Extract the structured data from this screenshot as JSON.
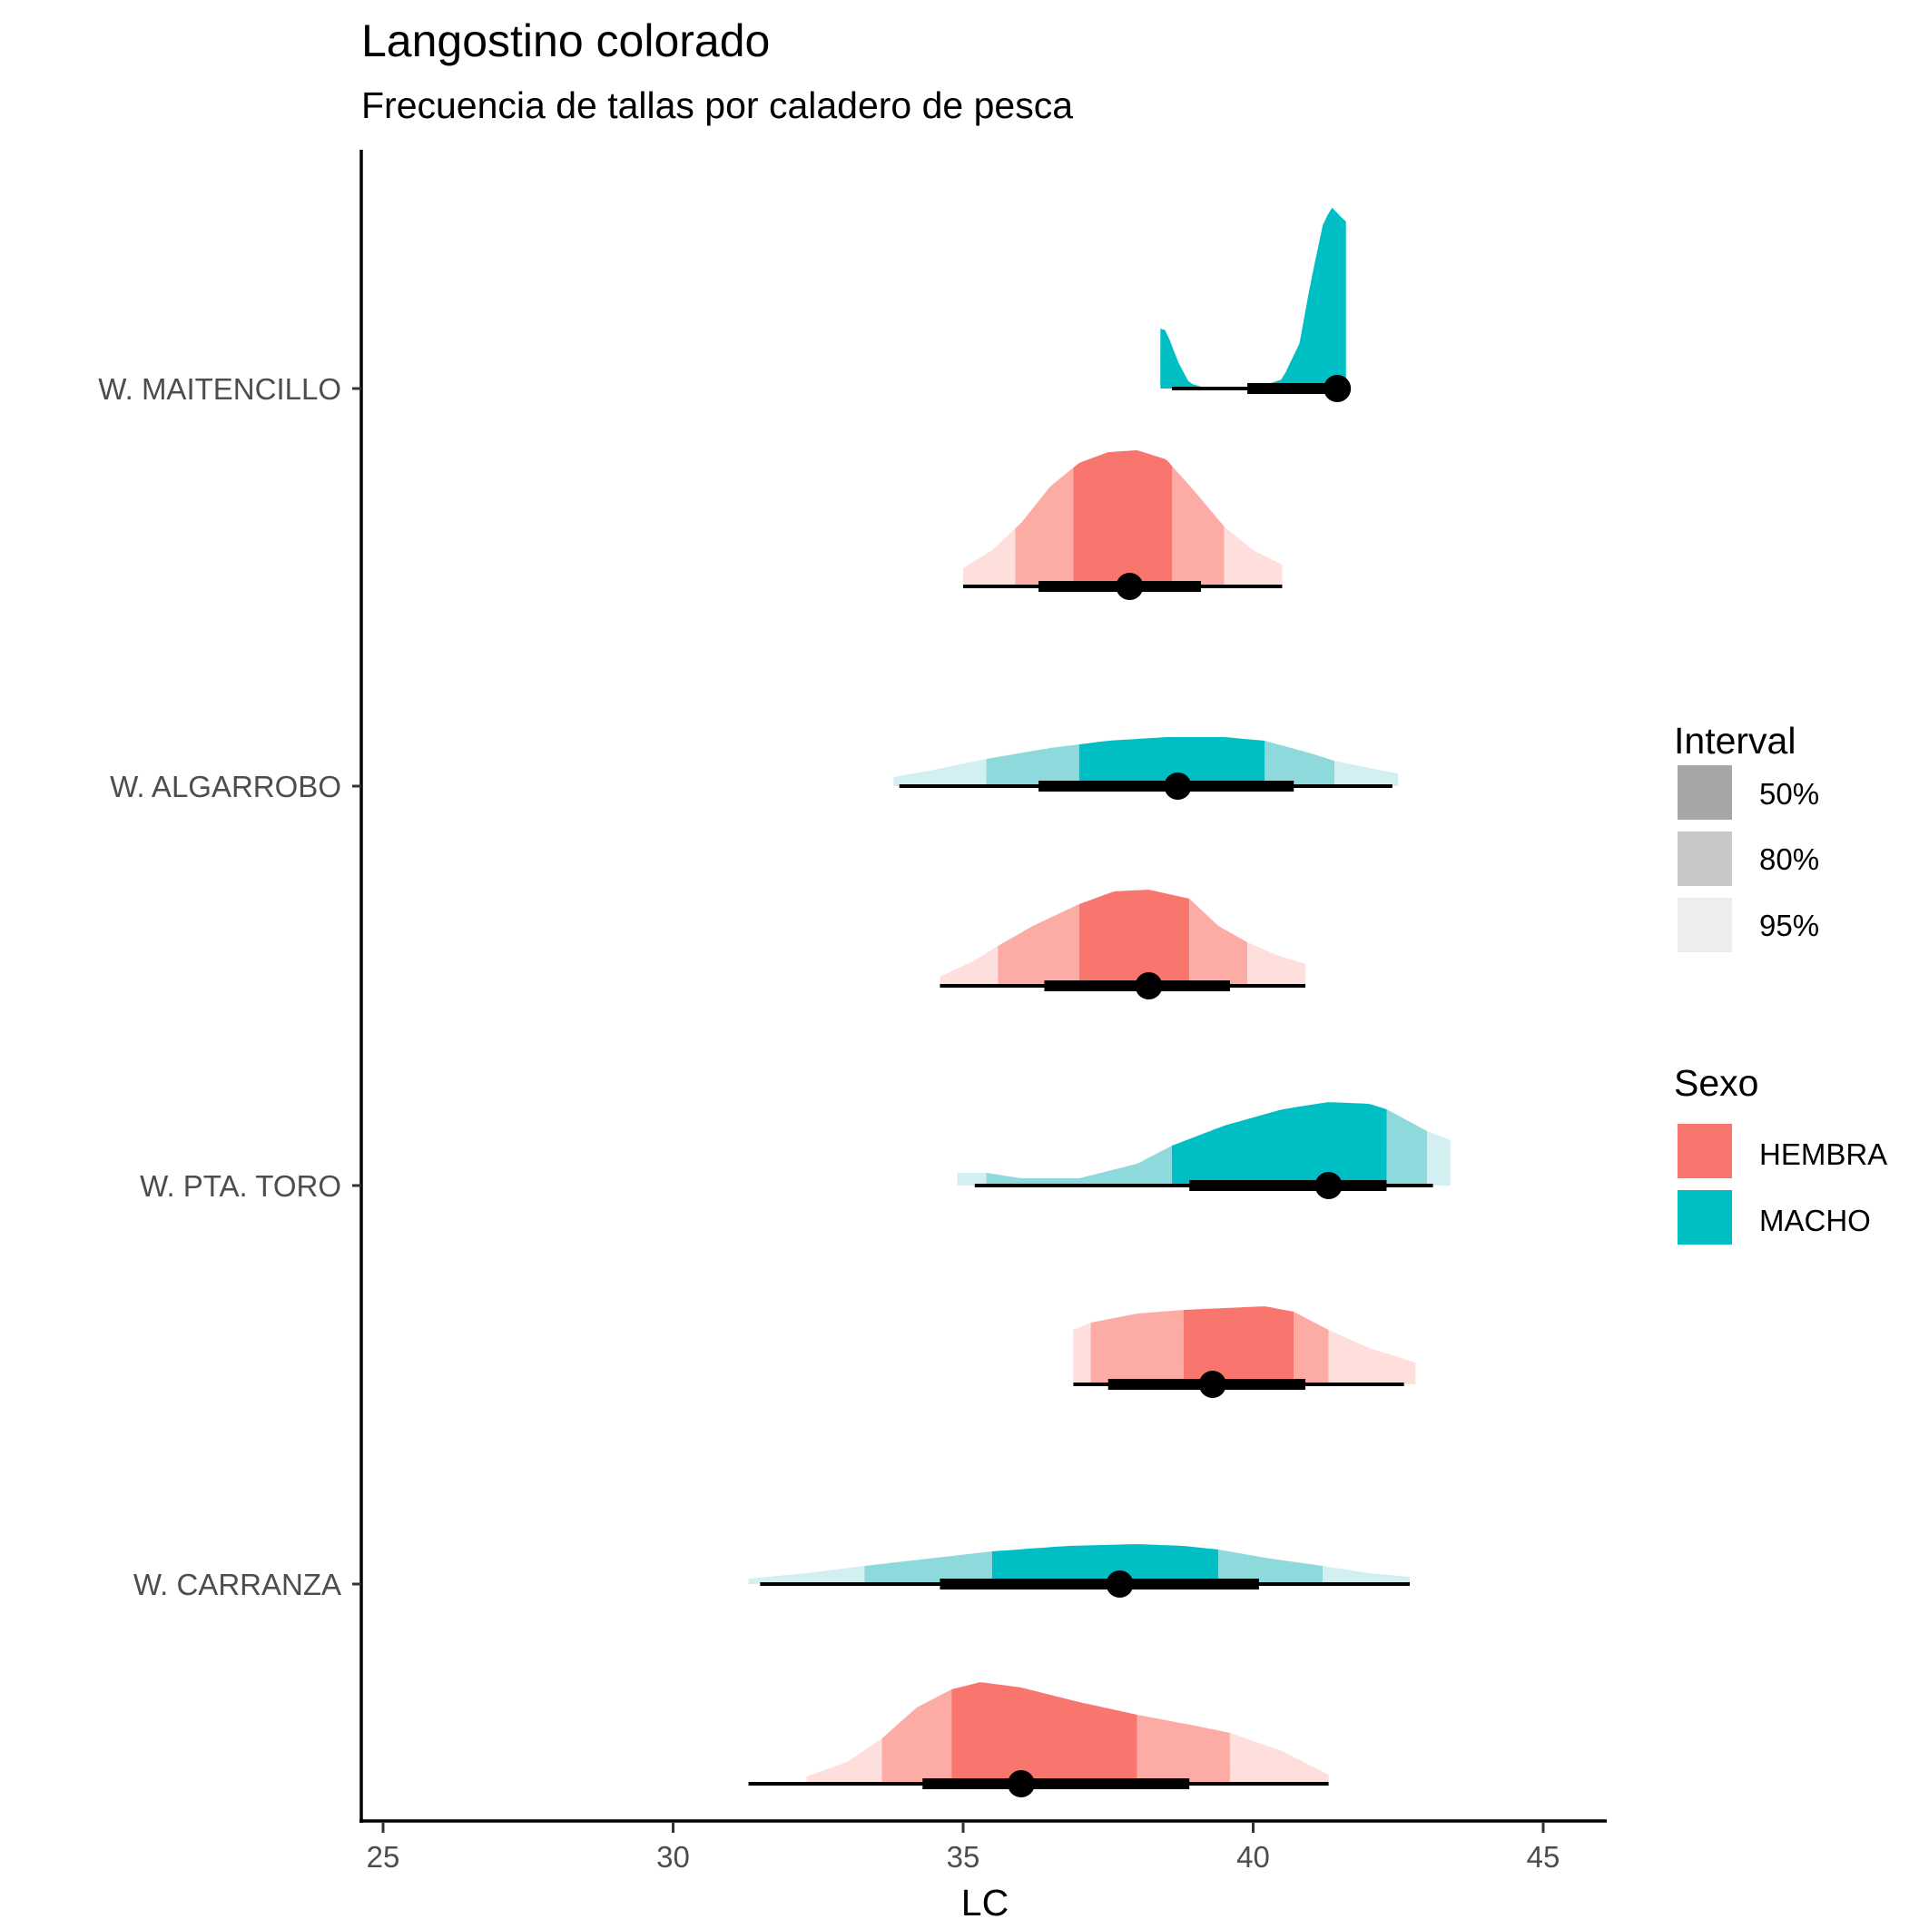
{
  "chart_data": {
    "type": "halfeye",
    "title": "Langostino colorado",
    "subtitle": "Frecuencia de tallas por caladero de pesca",
    "xlabel": "LC",
    "ylabel": "",
    "xlim": [
      24.5,
      46.0
    ],
    "x_ticks": [
      25,
      30,
      35,
      40,
      45
    ],
    "x_tick_labels": [
      "25",
      "30",
      "35",
      "40",
      "45"
    ],
    "y_tick_labels": [
      "W. MAITENCILLO",
      "W. ALGARROBO",
      "W. PTA. TORO",
      "W. CARRANZA"
    ],
    "grid": false,
    "legend_position": "right",
    "colors": {
      "HEMBRA": "#F8766D",
      "MACHO": "#00BFC4"
    },
    "legends": [
      {
        "title": "Interval",
        "items": [
          {
            "label": "50%",
            "color": "#A6A6A6"
          },
          {
            "label": "80%",
            "color": "#C8C8C8"
          },
          {
            "label": "95%",
            "color": "#EDEDED"
          }
        ]
      },
      {
        "title": "Sexo",
        "items": [
          {
            "label": "HEMBRA",
            "color": "#F8766D"
          },
          {
            "label": "MACHO",
            "color": "#00BFC4"
          }
        ]
      }
    ],
    "series": [
      {
        "caladero": "W. MAITENCILLO",
        "sexo": "MACHO",
        "point": 41.45,
        "int50": [
          39.9,
          41.45
        ],
        "int80": [
          38.7,
          41.45
        ],
        "int95": [
          38.6,
          41.45
        ],
        "density_range": [
          38.4,
          41.6
        ],
        "density": [
          [
            38.4,
            0.33
          ],
          [
            38.5,
            0.32
          ],
          [
            38.7,
            0.15
          ],
          [
            38.9,
            0.03
          ],
          [
            39.2,
            0.0
          ],
          [
            40.0,
            0.0
          ],
          [
            40.5,
            0.05
          ],
          [
            40.8,
            0.25
          ],
          [
            41.0,
            0.6
          ],
          [
            41.2,
            0.9
          ],
          [
            41.35,
            1.0
          ],
          [
            41.5,
            0.95
          ],
          [
            41.6,
            0.92
          ]
        ]
      },
      {
        "caladero": "W. ALGARROBO",
        "sexo": "HEMBRA",
        "point": 37.87,
        "int50": [
          36.3,
          39.1
        ],
        "int80": [
          36.3,
          39.1
        ],
        "int95": [
          35.0,
          40.5
        ],
        "bands": [
          35.0,
          35.9,
          36.9,
          38.6,
          39.5,
          40.5
        ],
        "density_range": [
          35.0,
          40.5
        ],
        "density": [
          [
            35.0,
            0.1
          ],
          [
            35.5,
            0.2
          ],
          [
            36.0,
            0.35
          ],
          [
            36.5,
            0.55
          ],
          [
            37.0,
            0.68
          ],
          [
            37.5,
            0.74
          ],
          [
            38.0,
            0.75
          ],
          [
            38.5,
            0.7
          ],
          [
            39.0,
            0.52
          ],
          [
            39.5,
            0.33
          ],
          [
            40.0,
            0.2
          ],
          [
            40.5,
            0.12
          ]
        ]
      },
      {
        "caladero": "W. ALGARROBO",
        "sexo": "MACHO",
        "point": 38.7,
        "int50": [
          36.3,
          40.7
        ],
        "int80": [
          36.3,
          40.7
        ],
        "int95": [
          33.9,
          42.4
        ],
        "bands": [
          33.8,
          35.4,
          37.0,
          40.2,
          41.4,
          42.5
        ],
        "density_range": [
          33.8,
          42.5
        ],
        "density": [
          [
            33.8,
            0.05
          ],
          [
            34.5,
            0.09
          ],
          [
            35.4,
            0.15
          ],
          [
            36.5,
            0.21
          ],
          [
            37.5,
            0.25
          ],
          [
            38.5,
            0.27
          ],
          [
            39.5,
            0.27
          ],
          [
            40.2,
            0.25
          ],
          [
            41.0,
            0.18
          ],
          [
            41.4,
            0.14
          ],
          [
            42.0,
            0.1
          ],
          [
            42.5,
            0.07
          ]
        ]
      },
      {
        "caladero": "W. PTA. TORO",
        "sexo": "HEMBRA",
        "point": 38.2,
        "int50": [
          36.4,
          39.6
        ],
        "int80": [
          36.4,
          39.6
        ],
        "int95": [
          34.6,
          40.9
        ],
        "bands": [
          34.6,
          35.6,
          37.0,
          38.9,
          39.9,
          40.9
        ],
        "density_range": [
          34.6,
          40.9
        ],
        "density": [
          [
            34.6,
            0.05
          ],
          [
            35.2,
            0.14
          ],
          [
            35.6,
            0.22
          ],
          [
            36.2,
            0.33
          ],
          [
            37.0,
            0.45
          ],
          [
            37.6,
            0.52
          ],
          [
            38.2,
            0.53
          ],
          [
            38.9,
            0.48
          ],
          [
            39.4,
            0.33
          ],
          [
            39.9,
            0.24
          ],
          [
            40.4,
            0.17
          ],
          [
            40.9,
            0.12
          ]
        ]
      },
      {
        "caladero": "W. PTA. TORO",
        "sexo": "MACHO",
        "point": 41.3,
        "int50": [
          38.9,
          42.3
        ],
        "int80": [
          38.9,
          42.3
        ],
        "int95": [
          35.2,
          43.1
        ],
        "bands": [
          34.9,
          35.4,
          38.6,
          42.3,
          43.0,
          43.4
        ],
        "density_range": [
          34.9,
          43.4
        ],
        "density": [
          [
            34.9,
            0.07
          ],
          [
            35.4,
            0.07
          ],
          [
            36.0,
            0.04
          ],
          [
            37.0,
            0.04
          ],
          [
            38.0,
            0.12
          ],
          [
            38.6,
            0.22
          ],
          [
            39.5,
            0.33
          ],
          [
            40.5,
            0.42
          ],
          [
            41.3,
            0.46
          ],
          [
            42.0,
            0.45
          ],
          [
            42.3,
            0.42
          ],
          [
            43.0,
            0.3
          ],
          [
            43.4,
            0.25
          ]
        ]
      },
      {
        "caladero": "W. PTA. TORO",
        "sexo": "HEMBRA_2",
        "point": 39.3,
        "int50": [
          37.5,
          40.9
        ],
        "int80": [
          37.5,
          40.9
        ],
        "int95": [
          36.9,
          42.6
        ],
        "bands": [
          36.9,
          37.2,
          38.8,
          40.7,
          41.3,
          42.8
        ],
        "density_range": [
          36.9,
          42.8
        ],
        "density": [
          [
            36.9,
            0.3
          ],
          [
            37.2,
            0.34
          ],
          [
            38.0,
            0.39
          ],
          [
            38.8,
            0.41
          ],
          [
            39.5,
            0.42
          ],
          [
            40.2,
            0.43
          ],
          [
            40.7,
            0.4
          ],
          [
            41.3,
            0.3
          ],
          [
            42.0,
            0.2
          ],
          [
            42.8,
            0.12
          ]
        ]
      },
      {
        "caladero": "W. CARRANZA",
        "sexo": "MACHO",
        "point": 37.7,
        "int50": [
          34.6,
          40.1
        ],
        "int80": [
          34.6,
          40.1
        ],
        "int95": [
          31.5,
          42.7
        ],
        "bands": [
          31.3,
          33.3,
          35.5,
          39.4,
          41.2,
          42.7
        ],
        "density_range": [
          31.3,
          42.7
        ],
        "density": [
          [
            31.3,
            0.03
          ],
          [
            32.3,
            0.06
          ],
          [
            33.3,
            0.1
          ],
          [
            34.4,
            0.14
          ],
          [
            35.5,
            0.18
          ],
          [
            36.8,
            0.21
          ],
          [
            38.0,
            0.22
          ],
          [
            38.8,
            0.21
          ],
          [
            39.4,
            0.19
          ],
          [
            40.3,
            0.14
          ],
          [
            41.2,
            0.1
          ],
          [
            42.0,
            0.06
          ],
          [
            42.7,
            0.04
          ]
        ]
      },
      {
        "caladero": "W. CARRANZA",
        "sexo": "HEMBRA",
        "point": 36.0,
        "int50": [
          34.3,
          38.9
        ],
        "int80": [
          34.3,
          38.9
        ],
        "int95": [
          31.3,
          41.3
        ],
        "bands": [
          32.3,
          33.6,
          34.8,
          38.0,
          39.6,
          41.3
        ],
        "density_range": [
          31.3,
          41.3
        ],
        "density": [
          [
            31.3,
            0.0
          ],
          [
            32.3,
            0.04
          ],
          [
            33.0,
            0.12
          ],
          [
            33.6,
            0.25
          ],
          [
            34.2,
            0.42
          ],
          [
            34.8,
            0.52
          ],
          [
            35.3,
            0.56
          ],
          [
            36.0,
            0.53
          ],
          [
            37.0,
            0.45
          ],
          [
            38.0,
            0.38
          ],
          [
            39.0,
            0.32
          ],
          [
            39.6,
            0.28
          ],
          [
            40.5,
            0.18
          ],
          [
            41.3,
            0.05
          ]
        ]
      }
    ]
  }
}
